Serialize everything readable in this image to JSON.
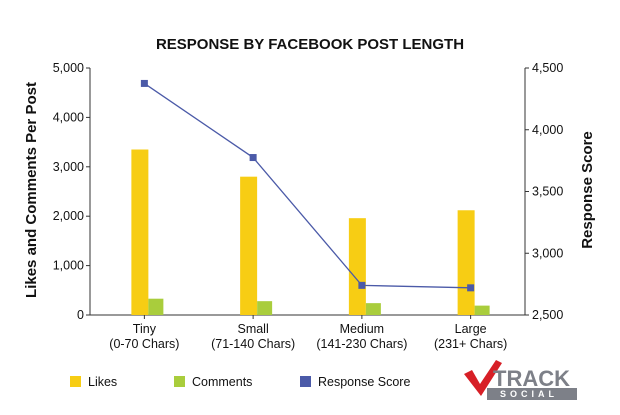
{
  "chart_data": {
    "type": "bar",
    "title": "RESPONSE BY FACEBOOK POST LENGTH",
    "categories": [
      "Tiny",
      "Small",
      "Medium",
      "Large"
    ],
    "category_sublabels": [
      "(0-70 Chars)",
      "(71-140 Chars)",
      "(141-230 Chars)",
      "(231+ Chars)"
    ],
    "ylabel": "Likes and Comments Per Post",
    "ylabel_right": "Response Score",
    "ylim": [
      0,
      5000
    ],
    "yticks": [
      "0",
      "1,000",
      "2,000",
      "3,000",
      "4,000",
      "5,000"
    ],
    "ylim_right": [
      2500,
      4500
    ],
    "yticks_right": [
      "2,500",
      "3,000",
      "3,500",
      "4,000",
      "4,500"
    ],
    "grid": false,
    "legend_position": "bottom",
    "series": [
      {
        "name": "Likes",
        "type": "bar",
        "axis": "left",
        "color": "#f7cd14",
        "values": [
          3350,
          2800,
          1960,
          2120
        ]
      },
      {
        "name": "Comments",
        "type": "bar",
        "axis": "left",
        "color": "#a9cd3c",
        "values": [
          330,
          280,
          240,
          190
        ]
      },
      {
        "name": "Response Score",
        "type": "line",
        "axis": "right",
        "color": "#4b5aa8",
        "values": [
          4375,
          3775,
          2740,
          2720
        ]
      }
    ]
  },
  "logo": {
    "text_top": "TRACK",
    "text_bottom": "SOCIAL"
  }
}
